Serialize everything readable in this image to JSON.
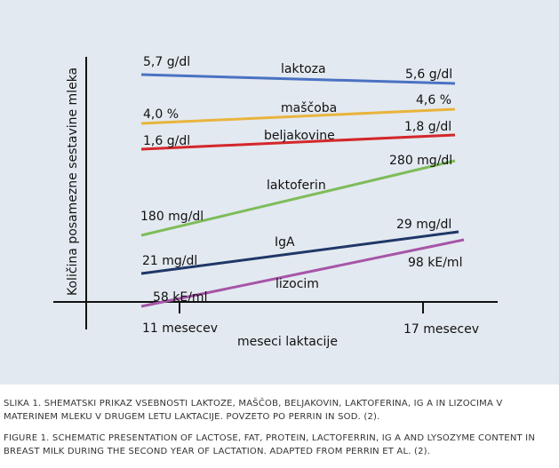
{
  "chart_data": {
    "type": "line",
    "ylabel": "Količina posamezne sestavine mleka",
    "xlabel": "meseci laktacije",
    "categories": [
      "11 mesecev",
      "17 mesecev"
    ],
    "series": [
      {
        "name": "laktoza",
        "start_label": "5,7 g/dl",
        "end_label": "5,6 g/dl",
        "values": [
          5.7,
          5.6
        ],
        "color": "#4a72c2"
      },
      {
        "name": "maščoba",
        "start_label": "4,0 %",
        "end_label": "4,6 %",
        "values": [
          4.0,
          4.6
        ],
        "color": "#e9b43d"
      },
      {
        "name": "beljakovine",
        "start_label": "1,6 g/dl",
        "end_label": "1,8 g/dl",
        "values": [
          1.6,
          1.8
        ],
        "color": "#d4272b"
      },
      {
        "name": "laktoferin",
        "start_label": "180 mg/dl",
        "end_label": "280 mg/dl",
        "values": [
          180,
          280
        ],
        "color": "#7ebc5a"
      },
      {
        "name": "IgA",
        "start_label": "21 mg/dl",
        "end_label": "29 mg/dl",
        "values": [
          21,
          29
        ],
        "color": "#1f3768"
      },
      {
        "name": "lizocim",
        "start_label": "58 kE/ml",
        "end_label": "98 kE/ml",
        "values": [
          58,
          98
        ],
        "color": "#a655a8"
      }
    ]
  },
  "captions": {
    "sl": "SLIKA 1. SHEMATSKI PRIKAZ VSEBNOSTI LAKTOZE, MAŠČOB, BELJAKOVIN, LAKTOFERINA, IG A IN LIZOCIMA V MATERINEM MLEKU V DRUGEM LETU LAKTACIJE. POVZETO PO PERRIN IN SOD. (2).",
    "en": "FIGURE 1. SCHEMATIC PRESENTATION OF LACTOSE, FAT, PROTEIN, LACTOFERRIN, IG A AND LYSOZYME CONTENT IN BREAST MILK DURING THE SECOND YEAR OF LACTATION. ADAPTED FROM PERRIN ET AL. (2)."
  }
}
